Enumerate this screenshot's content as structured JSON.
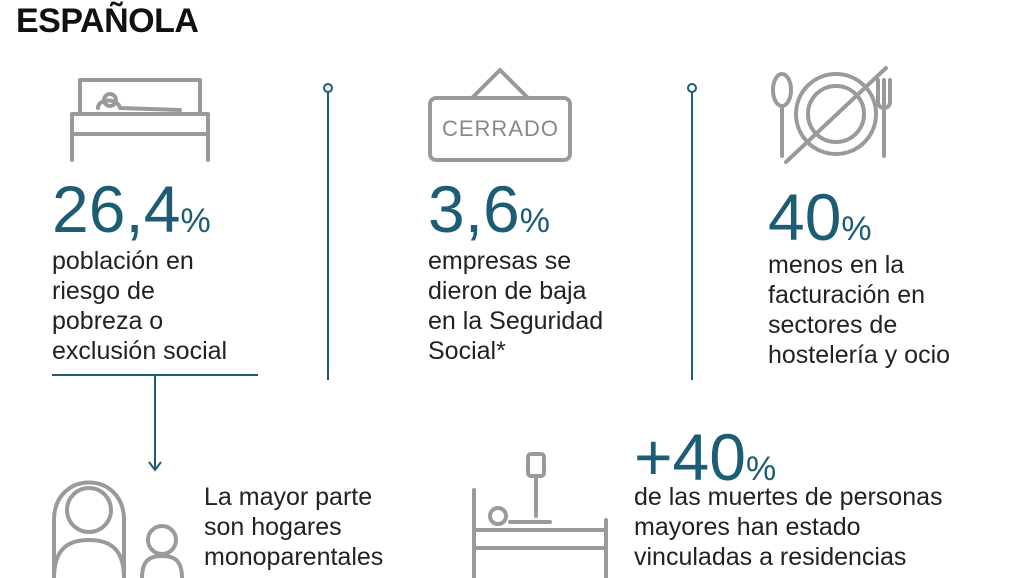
{
  "title": "ESPAÑOLA",
  "stats": [
    {
      "value": "26,4",
      "unit": "%",
      "text": [
        "población en",
        "riesgo de",
        "pobreza o",
        "exclusión social"
      ],
      "icon": "bed-icon"
    },
    {
      "value": "3,6",
      "unit": "%",
      "text": [
        "empresas se",
        "dieron de baja",
        "en la Seguridad",
        "Social*"
      ],
      "icon": "closed-sign-icon",
      "sign": "CERRADO"
    },
    {
      "value": "40",
      "unit": "%",
      "text": [
        "menos en la",
        "facturación en",
        "sectores de",
        "hostelería y ocio"
      ],
      "icon": "no-dining-icon"
    },
    {
      "value": "+40",
      "unit": "%",
      "text": [
        "de las muertes de personas",
        "mayores han estado",
        "vinculadas a residencias"
      ],
      "icon": "hospital-bed-icon"
    }
  ],
  "note": {
    "text": [
      "La mayor parte",
      "son hogares",
      "monoparentales"
    ],
    "icon": "parent-child-icon"
  },
  "colors": {
    "accent": "#1c5c75",
    "icon": "#9a9a9a"
  }
}
